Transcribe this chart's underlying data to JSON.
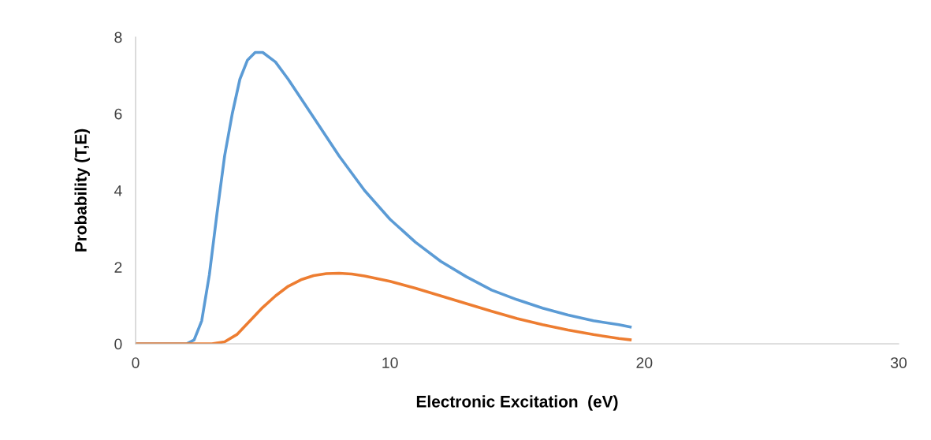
{
  "chart_data": {
    "type": "line",
    "xlabel": "Electronic Excitation  (eV)",
    "ylabel": "Probability (T,E)",
    "xlim": [
      0,
      30
    ],
    "xticks": [
      0,
      10,
      20,
      30
    ],
    "ylim": [
      0,
      8
    ],
    "yticks": [
      0,
      2,
      4,
      6,
      8
    ],
    "grid": false,
    "legend": false,
    "marker": "none",
    "line_style": "solid",
    "series": [
      {
        "color": "#5b9bd5",
        "x": [
          0,
          1,
          2.0,
          2.3,
          2.6,
          2.9,
          3.2,
          3.5,
          3.8,
          4.1,
          4.4,
          4.7,
          5.0,
          5.5,
          6,
          7,
          8,
          9,
          10,
          11,
          12,
          13,
          14,
          15,
          16,
          17,
          18,
          19,
          19.5
        ],
        "values": [
          0,
          0,
          0,
          0.1,
          0.6,
          1.8,
          3.4,
          4.9,
          6.0,
          6.9,
          7.4,
          7.6,
          7.6,
          7.35,
          6.9,
          5.9,
          4.9,
          4.0,
          3.25,
          2.65,
          2.15,
          1.75,
          1.4,
          1.15,
          0.93,
          0.75,
          0.6,
          0.5,
          0.43
        ]
      },
      {
        "color": "#ed7d31",
        "x": [
          0,
          1,
          2,
          3.0,
          3.5,
          4,
          4.5,
          5,
          5.5,
          6,
          6.5,
          7,
          7.5,
          8,
          8.5,
          9,
          10,
          11,
          12,
          13,
          14,
          15,
          16,
          17,
          18,
          19,
          19.5
        ],
        "values": [
          0,
          0,
          0,
          0,
          0.05,
          0.25,
          0.6,
          0.95,
          1.25,
          1.5,
          1.67,
          1.78,
          1.83,
          1.84,
          1.82,
          1.77,
          1.63,
          1.45,
          1.25,
          1.05,
          0.85,
          0.66,
          0.5,
          0.36,
          0.24,
          0.14,
          0.1
        ]
      }
    ]
  }
}
